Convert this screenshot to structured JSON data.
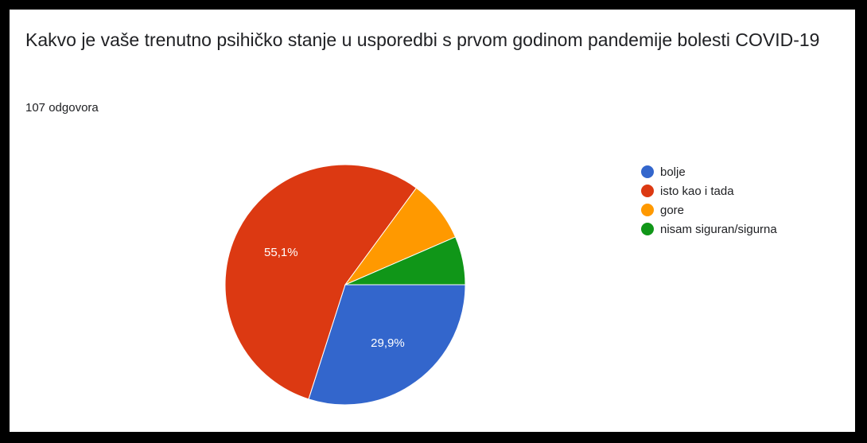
{
  "question": {
    "title": "Kakvo je vaše trenutno psihičko stanje u usporedbi s prvom godinom pandemije bolesti COVID-19",
    "responses": "107 odgovora"
  },
  "chart_data": {
    "type": "pie",
    "title": "Kakvo je vaše trenutno psihičko stanje u usporedbi s prvom godinom pandemije bolesti COVID-19",
    "legend_position": "right",
    "slices": [
      {
        "label": "bolje",
        "value": 29.9,
        "value_label": "29,9%",
        "color": "#3366cc"
      },
      {
        "label": "isto kao i tada",
        "value": 55.1,
        "value_label": "55,1%",
        "color": "#dc3912"
      },
      {
        "label": "gore",
        "value": 8.4,
        "value_label": "",
        "color": "#ff9900"
      },
      {
        "label": "nisam siguran/sigurna",
        "value": 6.5,
        "value_label": "",
        "color": "#109618"
      }
    ]
  }
}
